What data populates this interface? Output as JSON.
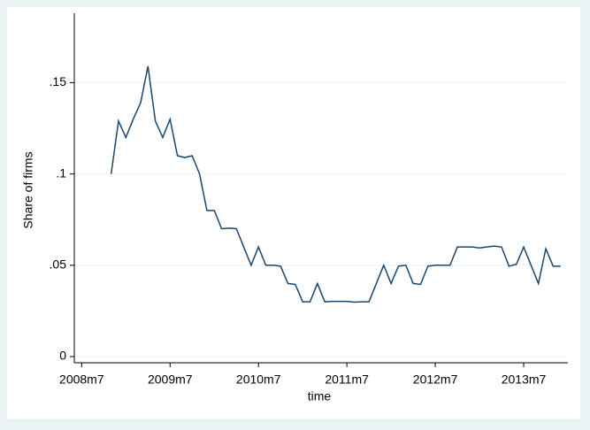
{
  "chart_data": {
    "type": "line",
    "x_label": "time",
    "y_label": "Share of firms",
    "x": [
      "2008m11",
      "2008m12",
      "2009m1",
      "2009m2",
      "2009m3",
      "2009m4",
      "2009m5",
      "2009m6",
      "2009m7",
      "2009m8",
      "2009m9",
      "2009m10",
      "2009m11",
      "2009m12",
      "2010m1",
      "2010m2",
      "2010m3",
      "2010m4",
      "2010m5",
      "2010m6",
      "2010m7",
      "2010m8",
      "2010m9",
      "2010m10",
      "2010m11",
      "2010m12",
      "2011m1",
      "2011m2",
      "2011m3",
      "2011m4",
      "2011m5",
      "2011m6",
      "2011m7",
      "2011m8",
      "2011m9",
      "2011m10",
      "2011m11",
      "2011m12",
      "2012m1",
      "2012m2",
      "2012m3",
      "2012m4",
      "2012m5",
      "2012m6",
      "2012m7",
      "2012m8",
      "2012m9",
      "2012m10",
      "2012m11",
      "2012m12",
      "2013m1",
      "2013m2",
      "2013m3",
      "2013m4",
      "2013m5",
      "2013m6",
      "2013m7",
      "2013m8",
      "2013m9",
      "2013m10",
      "2013m11",
      "2013m12"
    ],
    "values": [
      0.1,
      0.129,
      0.12,
      0.13,
      0.139,
      0.159,
      0.129,
      0.12,
      0.13,
      0.11,
      0.109,
      0.11,
      0.1,
      0.08,
      0.08,
      0.07,
      0.0703,
      0.07,
      0.06,
      0.05,
      0.06,
      0.05,
      0.05,
      0.0495,
      0.04,
      0.0395,
      0.03,
      0.03,
      0.04,
      0.03,
      0.0302,
      0.0302,
      0.0302,
      0.0298,
      0.03,
      0.03,
      0.04,
      0.05,
      0.04,
      0.0495,
      0.05,
      0.04,
      0.0395,
      0.0495,
      0.05,
      0.05,
      0.05,
      0.06,
      0.06,
      0.06,
      0.0595,
      0.06,
      0.0605,
      0.06,
      0.0495,
      0.0505,
      0.06,
      0.05,
      0.04,
      0.059,
      0.0495,
      0.0495
    ],
    "color": "#1a476f",
    "xlim": [
      "2008m6",
      "2014m1"
    ],
    "xticks": [
      "2008m7",
      "2009m7",
      "2010m7",
      "2011m7",
      "2012m7",
      "2013m7"
    ],
    "ylim": [
      -0.0034,
      0.188
    ],
    "yticks": [
      0,
      {
        "value": 0.05,
        "label": ".05"
      },
      {
        "value": 0.1,
        "label": ".1"
      },
      {
        "value": 0.15,
        "label": ".15"
      }
    ],
    "grid": true
  }
}
